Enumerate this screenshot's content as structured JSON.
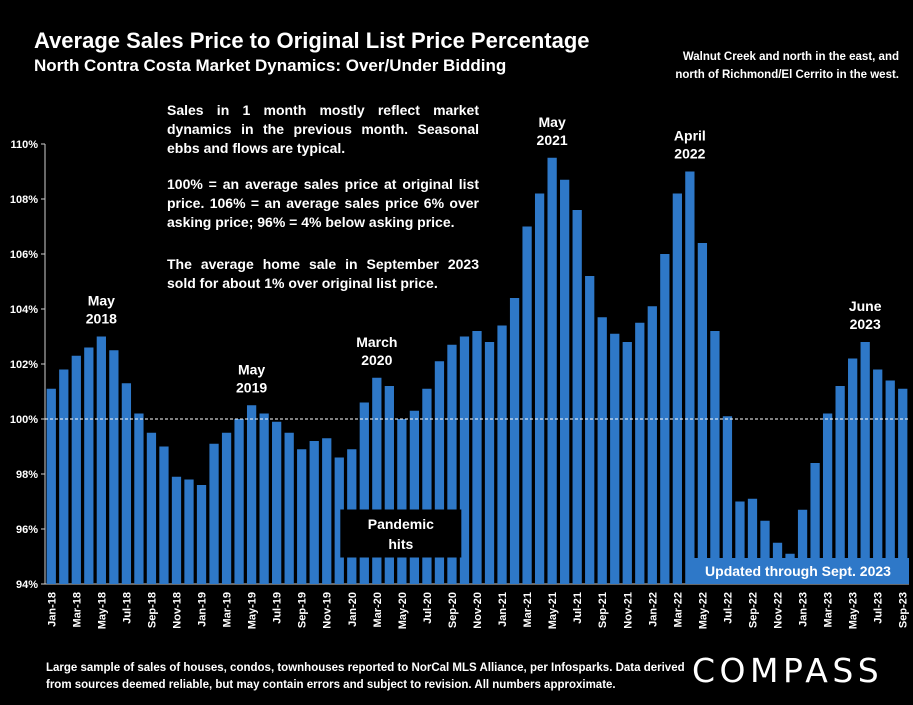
{
  "header": {
    "title": "Average Sales Price to Original List Price Percentage",
    "subtitle": "North Contra Costa Market Dynamics: Over/Under Bidding",
    "geography_line1": "Walnut Creek and north in the east, and",
    "geography_line2": "north of Richmond/El Cerrito in the west."
  },
  "notes": {
    "note1": "Sales in 1 month mostly reflect market dynamics in the previous month. Seasonal ebbs and flows are typical.",
    "note2": "100% = an average sales price at original list price. 106% = an average sales price 6% over asking price; 96% = 4% below asking price.",
    "note3": "The average home sale in September 2023 sold for about 1% over original list price."
  },
  "footer": {
    "disclaimer": "Large sample of sales of houses, condos, townhouses reported to NorCal MLS Alliance, per Infosparks. Data derived from sources deemed reliable, but may contain errors and subject to revision. All numbers approximate.",
    "logo": "COMPASS"
  },
  "chart_data": {
    "type": "bar",
    "title": "Average Sales Price to Original List Price Percentage",
    "ylabel": "",
    "xlabel": "",
    "ylim": [
      94,
      110
    ],
    "yticks": [
      "94%",
      "96%",
      "98%",
      "100%",
      "102%",
      "104%",
      "106%",
      "108%",
      "110%"
    ],
    "yticks_values": [
      94,
      96,
      98,
      100,
      102,
      104,
      106,
      108,
      110
    ],
    "reference_line": 100,
    "grid": false,
    "bar_color": "#2e78c8",
    "reference_line_color": "#ffffff",
    "categories": [
      "Jan-18",
      "Feb-18",
      "Mar-18",
      "Apr-18",
      "May-18",
      "Jun-18",
      "Jul-18",
      "Aug-18",
      "Sep-18",
      "Oct-18",
      "Nov-18",
      "Dec-18",
      "Jan-19",
      "Feb-19",
      "Mar-19",
      "Apr-19",
      "May-19",
      "Jun-19",
      "Jul-19",
      "Aug-19",
      "Sep-19",
      "Oct-19",
      "Nov-19",
      "Dec-19",
      "Jan-20",
      "Feb-20",
      "Mar-20",
      "Apr-20",
      "May-20",
      "Jun-20",
      "Jul-20",
      "Aug-20",
      "Sep-20",
      "Oct-20",
      "Nov-20",
      "Dec-20",
      "Jan-21",
      "Feb-21",
      "Mar-21",
      "Apr-21",
      "May-21",
      "Jun-21",
      "Jul-21",
      "Aug-21",
      "Sep-21",
      "Oct-21",
      "Nov-21",
      "Dec-21",
      "Jan-22",
      "Feb-22",
      "Mar-22",
      "Apr-22",
      "May-22",
      "Jun-22",
      "Jul-22",
      "Aug-22",
      "Sep-22",
      "Oct-22",
      "Nov-22",
      "Dec-22",
      "Jan-23",
      "Feb-23",
      "Mar-23",
      "Apr-23",
      "May-23",
      "Jun-23",
      "Jul-23",
      "Aug-23",
      "Sep-23"
    ],
    "x_tick_labels": [
      "Jan-18",
      "Mar-18",
      "May-18",
      "Jul-18",
      "Sep-18",
      "Nov-18",
      "Jan-19",
      "Mar-19",
      "May-19",
      "Jul-19",
      "Sep-19",
      "Nov-19",
      "Jan-20",
      "Mar-20",
      "May-20",
      "Jul-20",
      "Sep-20",
      "Nov-20",
      "Jan-21",
      "Mar-21",
      "May-21",
      "Jul-21",
      "Sep-21",
      "Nov-21",
      "Jan-22",
      "Mar-22",
      "May-22",
      "Jul-22",
      "Sep-22",
      "Nov-22",
      "Jan-23",
      "Mar-23",
      "May-23",
      "Jul-23",
      "Sep-23"
    ],
    "values": [
      101.1,
      101.8,
      102.3,
      102.6,
      103.0,
      102.5,
      101.3,
      100.2,
      99.5,
      99.0,
      97.9,
      97.8,
      97.6,
      99.1,
      99.5,
      100.0,
      100.5,
      100.2,
      99.9,
      99.5,
      98.9,
      99.2,
      99.3,
      98.6,
      98.9,
      100.6,
      101.5,
      101.2,
      100.0,
      100.3,
      101.1,
      102.1,
      102.7,
      103.0,
      103.2,
      102.8,
      103.4,
      104.4,
      107.0,
      108.2,
      109.5,
      108.7,
      107.6,
      105.2,
      103.7,
      103.1,
      102.8,
      103.5,
      104.1,
      106.0,
      108.2,
      109.0,
      106.4,
      103.2,
      100.1,
      97.0,
      97.1,
      96.3,
      95.5,
      95.1,
      96.7,
      98.4,
      100.2,
      101.2,
      102.2,
      102.8,
      101.8,
      101.4,
      101.1
    ],
    "annotations": [
      {
        "index": 4,
        "line1": "May",
        "line2": "2018"
      },
      {
        "index": 16,
        "line1": "May",
        "line2": "2019"
      },
      {
        "index": 26,
        "line1": "March",
        "line2": "2020"
      },
      {
        "index": 40,
        "line1": "May",
        "line2": "2021"
      },
      {
        "index": 51,
        "line1": "April",
        "line2": "2022"
      },
      {
        "index": 65,
        "line1": "June",
        "line2": "2023"
      }
    ],
    "callout": {
      "index": 26,
      "line1": "Pandemic",
      "line2": "hits"
    },
    "updated_badge": {
      "text": "Updated through Sept. 2023",
      "color": "#2e78c8"
    }
  }
}
